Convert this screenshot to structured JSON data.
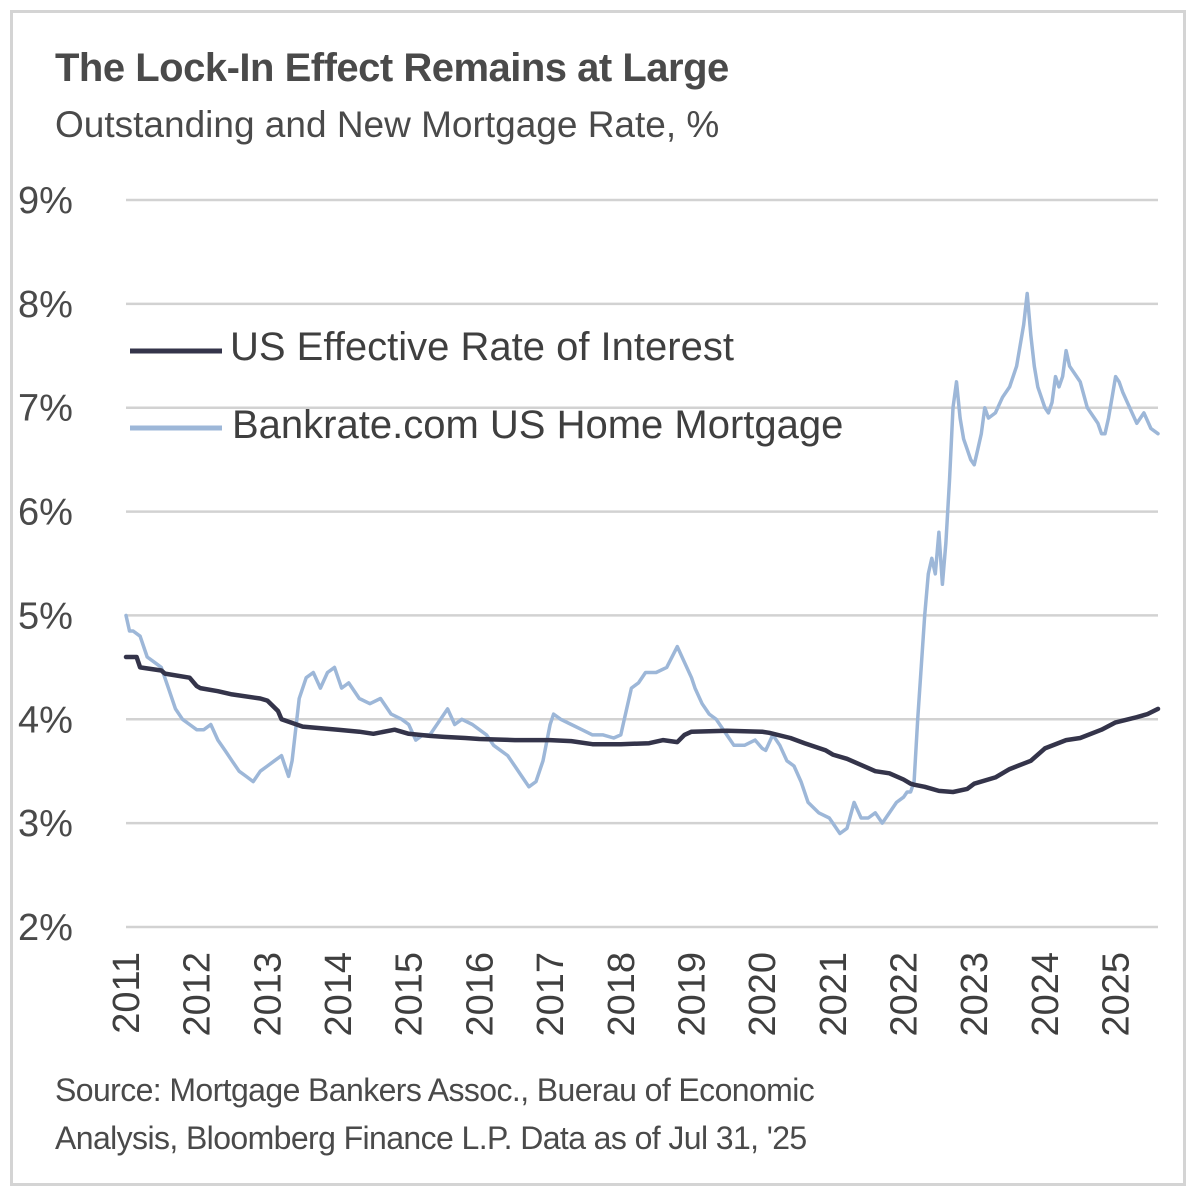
{
  "header": {
    "title": "The Lock-In Effect Remains at Large",
    "subtitle": "Outstanding and New Mortgage Rate, %"
  },
  "footer": {
    "source_line1": "Source: Mortgage Bankers Assoc., Buerau of Economic",
    "source_line2": "Analysis, Bloomberg Finance L.P. Data as of Jul  31, '25"
  },
  "colors": {
    "effective": "#34344a",
    "bankrate": "#9db7d8",
    "grid": "#d2d2d2",
    "text": "#4a4a4a"
  },
  "chart_data": {
    "type": "line",
    "title": "The Lock-In Effect Remains at Large",
    "subtitle": "Outstanding and New Mortgage Rate, %",
    "ylim": [
      2,
      9
    ],
    "yticks": [
      2,
      3,
      4,
      5,
      6,
      7,
      8,
      9
    ],
    "ytick_labels": [
      "2%",
      "3%",
      "4%",
      "5%",
      "6%",
      "7%",
      "8%",
      "9%"
    ],
    "xlim": [
      2011.0,
      2025.6
    ],
    "xticks": [
      2011,
      2012,
      2013,
      2014,
      2015,
      2016,
      2017,
      2018,
      2019,
      2020,
      2021,
      2022,
      2023,
      2024,
      2025
    ],
    "xtick_labels": [
      "2011",
      "2012",
      "2013",
      "2014",
      "2015",
      "2016",
      "2017",
      "2018",
      "2019",
      "2020",
      "2021",
      "2022",
      "2023",
      "2024",
      "2025"
    ],
    "grid": true,
    "legend_position": "top-left",
    "series": [
      {
        "name": "US Effective Rate of Interest",
        "color": "#34344a",
        "x": [
          2011.0,
          2011.15,
          2011.2,
          2011.5,
          2011.55,
          2011.9,
          2012.0,
          2012.05,
          2012.3,
          2012.5,
          2012.9,
          2013.0,
          2013.15,
          2013.2,
          2013.5,
          2014.0,
          2014.3,
          2014.5,
          2014.8,
          2015.0,
          2015.3,
          2015.5,
          2015.8,
          2016.0,
          2016.5,
          2017.0,
          2017.3,
          2017.6,
          2018.0,
          2018.4,
          2018.6,
          2018.8,
          2018.9,
          2019.0,
          2019.5,
          2020.0,
          2020.1,
          2020.4,
          2020.6,
          2020.9,
          2021.0,
          2021.2,
          2021.5,
          2021.6,
          2021.8,
          2022.0,
          2022.1,
          2022.15,
          2022.3,
          2022.5,
          2022.7,
          2022.9,
          2023.0,
          2023.3,
          2023.5,
          2023.8,
          2024.0,
          2024.3,
          2024.5,
          2024.8,
          2025.0,
          2025.3,
          2025.45,
          2025.6
        ],
        "values": [
          4.6,
          4.6,
          4.5,
          4.47,
          4.44,
          4.4,
          4.32,
          4.3,
          4.27,
          4.24,
          4.2,
          4.18,
          4.08,
          4.0,
          3.93,
          3.9,
          3.88,
          3.86,
          3.9,
          3.86,
          3.84,
          3.83,
          3.82,
          3.81,
          3.8,
          3.8,
          3.79,
          3.76,
          3.76,
          3.77,
          3.8,
          3.78,
          3.85,
          3.88,
          3.89,
          3.88,
          3.87,
          3.82,
          3.77,
          3.7,
          3.66,
          3.62,
          3.53,
          3.5,
          3.48,
          3.42,
          3.38,
          3.37,
          3.35,
          3.31,
          3.3,
          3.33,
          3.38,
          3.44,
          3.52,
          3.6,
          3.72,
          3.8,
          3.82,
          3.9,
          3.97,
          4.02,
          4.05,
          4.1
        ]
      },
      {
        "name": "Bankrate.com US Home Mortgage",
        "color": "#9db7d8",
        "x": [
          2011.0,
          2011.05,
          2011.1,
          2011.2,
          2011.3,
          2011.4,
          2011.5,
          2011.6,
          2011.7,
          2011.8,
          2011.9,
          2012.0,
          2012.1,
          2012.2,
          2012.3,
          2012.4,
          2012.5,
          2012.6,
          2012.7,
          2012.8,
          2012.9,
          2013.0,
          2013.1,
          2013.2,
          2013.25,
          2013.3,
          2013.35,
          2013.45,
          2013.55,
          2013.65,
          2013.75,
          2013.85,
          2013.95,
          2014.05,
          2014.15,
          2014.3,
          2014.45,
          2014.6,
          2014.75,
          2014.9,
          2015.0,
          2015.1,
          2015.2,
          2015.3,
          2015.45,
          2015.55,
          2015.65,
          2015.75,
          2015.9,
          2016.0,
          2016.1,
          2016.2,
          2016.3,
          2016.4,
          2016.5,
          2016.6,
          2016.7,
          2016.8,
          2016.9,
          2017.0,
          2017.05,
          2017.15,
          2017.3,
          2017.45,
          2017.6,
          2017.75,
          2017.9,
          2018.0,
          2018.05,
          2018.15,
          2018.25,
          2018.35,
          2018.5,
          2018.65,
          2018.8,
          2018.9,
          2019.0,
          2019.05,
          2019.15,
          2019.25,
          2019.35,
          2019.5,
          2019.6,
          2019.75,
          2019.9,
          2020.0,
          2020.05,
          2020.15,
          2020.25,
          2020.35,
          2020.45,
          2020.55,
          2020.65,
          2020.8,
          2020.95,
          2021.0,
          2021.1,
          2021.2,
          2021.3,
          2021.4,
          2021.5,
          2021.6,
          2021.7,
          2021.8,
          2021.9,
          2022.0,
          2022.05,
          2022.1,
          2022.15,
          2022.2,
          2022.25,
          2022.3,
          2022.35,
          2022.4,
          2022.45,
          2022.5,
          2022.55,
          2022.6,
          2022.65,
          2022.7,
          2022.75,
          2022.8,
          2022.85,
          2022.9,
          2022.95,
          2023.0,
          2023.05,
          2023.1,
          2023.15,
          2023.2,
          2023.3,
          2023.4,
          2023.5,
          2023.6,
          2023.7,
          2023.75,
          2023.8,
          2023.85,
          2023.9,
          2024.0,
          2024.05,
          2024.1,
          2024.15,
          2024.2,
          2024.25,
          2024.3,
          2024.35,
          2024.45,
          2024.5,
          2024.6,
          2024.7,
          2024.75,
          2024.8,
          2024.85,
          2024.9,
          2024.95,
          2025.0,
          2025.05,
          2025.1,
          2025.2,
          2025.3,
          2025.4,
          2025.5,
          2025.6
        ],
        "values": [
          5.0,
          4.85,
          4.85,
          4.8,
          4.6,
          4.55,
          4.5,
          4.3,
          4.1,
          4.0,
          3.95,
          3.9,
          3.9,
          3.95,
          3.8,
          3.7,
          3.6,
          3.5,
          3.45,
          3.4,
          3.5,
          3.55,
          3.6,
          3.65,
          3.55,
          3.45,
          3.6,
          4.2,
          4.4,
          4.45,
          4.3,
          4.45,
          4.5,
          4.3,
          4.35,
          4.2,
          4.15,
          4.2,
          4.05,
          4.0,
          3.95,
          3.8,
          3.85,
          3.85,
          4.0,
          4.1,
          3.95,
          4.0,
          3.95,
          3.9,
          3.85,
          3.75,
          3.7,
          3.65,
          3.55,
          3.45,
          3.35,
          3.4,
          3.6,
          3.95,
          4.05,
          4.0,
          3.95,
          3.9,
          3.85,
          3.85,
          3.82,
          3.85,
          4.0,
          4.3,
          4.35,
          4.45,
          4.45,
          4.5,
          4.7,
          4.55,
          4.4,
          4.3,
          4.15,
          4.05,
          4.0,
          3.85,
          3.75,
          3.75,
          3.8,
          3.72,
          3.7,
          3.85,
          3.75,
          3.6,
          3.55,
          3.4,
          3.2,
          3.1,
          3.05,
          3.0,
          2.9,
          2.95,
          3.2,
          3.05,
          3.05,
          3.1,
          3.0,
          3.1,
          3.2,
          3.25,
          3.3,
          3.3,
          3.4,
          4.0,
          4.5,
          5.0,
          5.4,
          5.55,
          5.4,
          5.8,
          5.3,
          5.7,
          6.3,
          7.0,
          7.25,
          6.9,
          6.7,
          6.6,
          6.5,
          6.45,
          6.6,
          6.75,
          7.0,
          6.9,
          6.95,
          7.1,
          7.2,
          7.4,
          7.8,
          8.1,
          7.7,
          7.4,
          7.2,
          7.0,
          6.95,
          7.05,
          7.3,
          7.2,
          7.3,
          7.55,
          7.4,
          7.3,
          7.25,
          7.0,
          6.9,
          6.85,
          6.75,
          6.75,
          6.9,
          7.1,
          7.3,
          7.25,
          7.15,
          7.0,
          6.85,
          6.95,
          6.8,
          6.75
        ]
      }
    ]
  }
}
